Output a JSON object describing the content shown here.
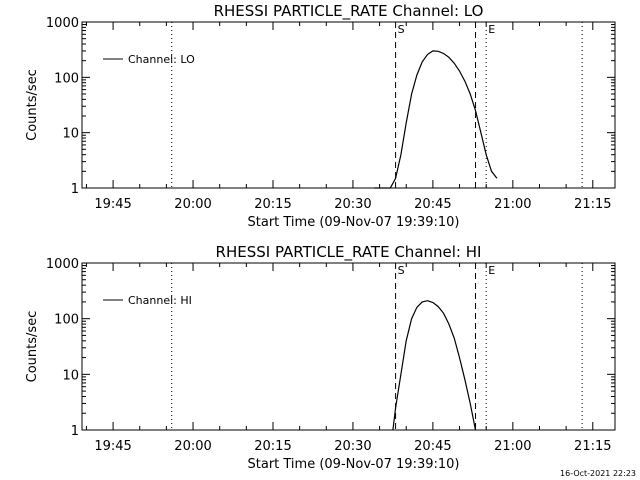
{
  "chart_data": [
    {
      "type": "line",
      "title": "RHESSI PARTICLE_RATE Channel: LO",
      "xlabel": "Start Time (09-Nov-07 19:39:10)",
      "ylabel": "Counts/sec",
      "yscale": "log",
      "xlim": [
        "19:39:10",
        "21:19:10"
      ],
      "ylim": [
        1,
        1000
      ],
      "x_ticks": [
        "19:45",
        "20:00",
        "20:15",
        "20:30",
        "20:45",
        "21:00",
        "21:15"
      ],
      "y_ticks": [
        "1",
        "10",
        "100",
        "1000"
      ],
      "grid": false,
      "legend": "top-left",
      "series": [
        {
          "name": "Channel: LO",
          "x": [
            "20:34",
            "20:37",
            "20:38",
            "20:39",
            "20:40",
            "20:41",
            "20:42",
            "20:43",
            "20:44",
            "20:45",
            "20:46",
            "20:47",
            "20:48",
            "20:49",
            "20:50",
            "20:51",
            "20:52",
            "20:53",
            "20:54",
            "20:55",
            "20:56",
            "20:57"
          ],
          "y": [
            1,
            1,
            1.5,
            4,
            15,
            50,
            110,
            190,
            260,
            300,
            295,
            270,
            230,
            180,
            130,
            85,
            50,
            25,
            10,
            4,
            2,
            1.5
          ]
        }
      ],
      "markers": [
        {
          "label": "S",
          "time": "20:38",
          "style": "dashed"
        },
        {
          "label": "",
          "time": "20:53",
          "style": "dashed"
        },
        {
          "label": "E",
          "time": "20:55",
          "style": "dotted"
        },
        {
          "label": "",
          "time": "19:56",
          "style": "dotted"
        },
        {
          "label": "",
          "time": "21:13",
          "style": "dotted"
        }
      ]
    },
    {
      "type": "line",
      "title": "RHESSI PARTICLE_RATE Channel: HI",
      "xlabel": "Start Time (09-Nov-07 19:39:10)",
      "ylabel": "Counts/sec",
      "yscale": "log",
      "xlim": [
        "19:39:10",
        "21:19:10"
      ],
      "ylim": [
        1,
        1000
      ],
      "x_ticks": [
        "19:45",
        "20:00",
        "20:15",
        "20:30",
        "20:45",
        "21:00",
        "21:15"
      ],
      "y_ticks": [
        "1",
        "10",
        "100",
        "1000"
      ],
      "grid": false,
      "legend": "top-left",
      "series": [
        {
          "name": "Channel: HI",
          "x": [
            "20:37.5",
            "20:38",
            "20:39",
            "20:40",
            "20:41",
            "20:42",
            "20:43",
            "20:44",
            "20:45",
            "20:46",
            "20:47",
            "20:48",
            "20:49",
            "20:50",
            "20:51",
            "20:52",
            "20:53"
          ],
          "y": [
            1,
            2.5,
            10,
            40,
            100,
            160,
            200,
            210,
            195,
            165,
            125,
            80,
            45,
            20,
            8,
            3,
            1
          ]
        }
      ],
      "markers": [
        {
          "label": "S",
          "time": "20:38",
          "style": "dashed"
        },
        {
          "label": "",
          "time": "20:53",
          "style": "dashed"
        },
        {
          "label": "E",
          "time": "20:55",
          "style": "dotted"
        },
        {
          "label": "",
          "time": "19:56",
          "style": "dotted"
        },
        {
          "label": "",
          "time": "21:13",
          "style": "dotted"
        }
      ]
    }
  ],
  "timestamp": "16-Oct-2021 22:23"
}
